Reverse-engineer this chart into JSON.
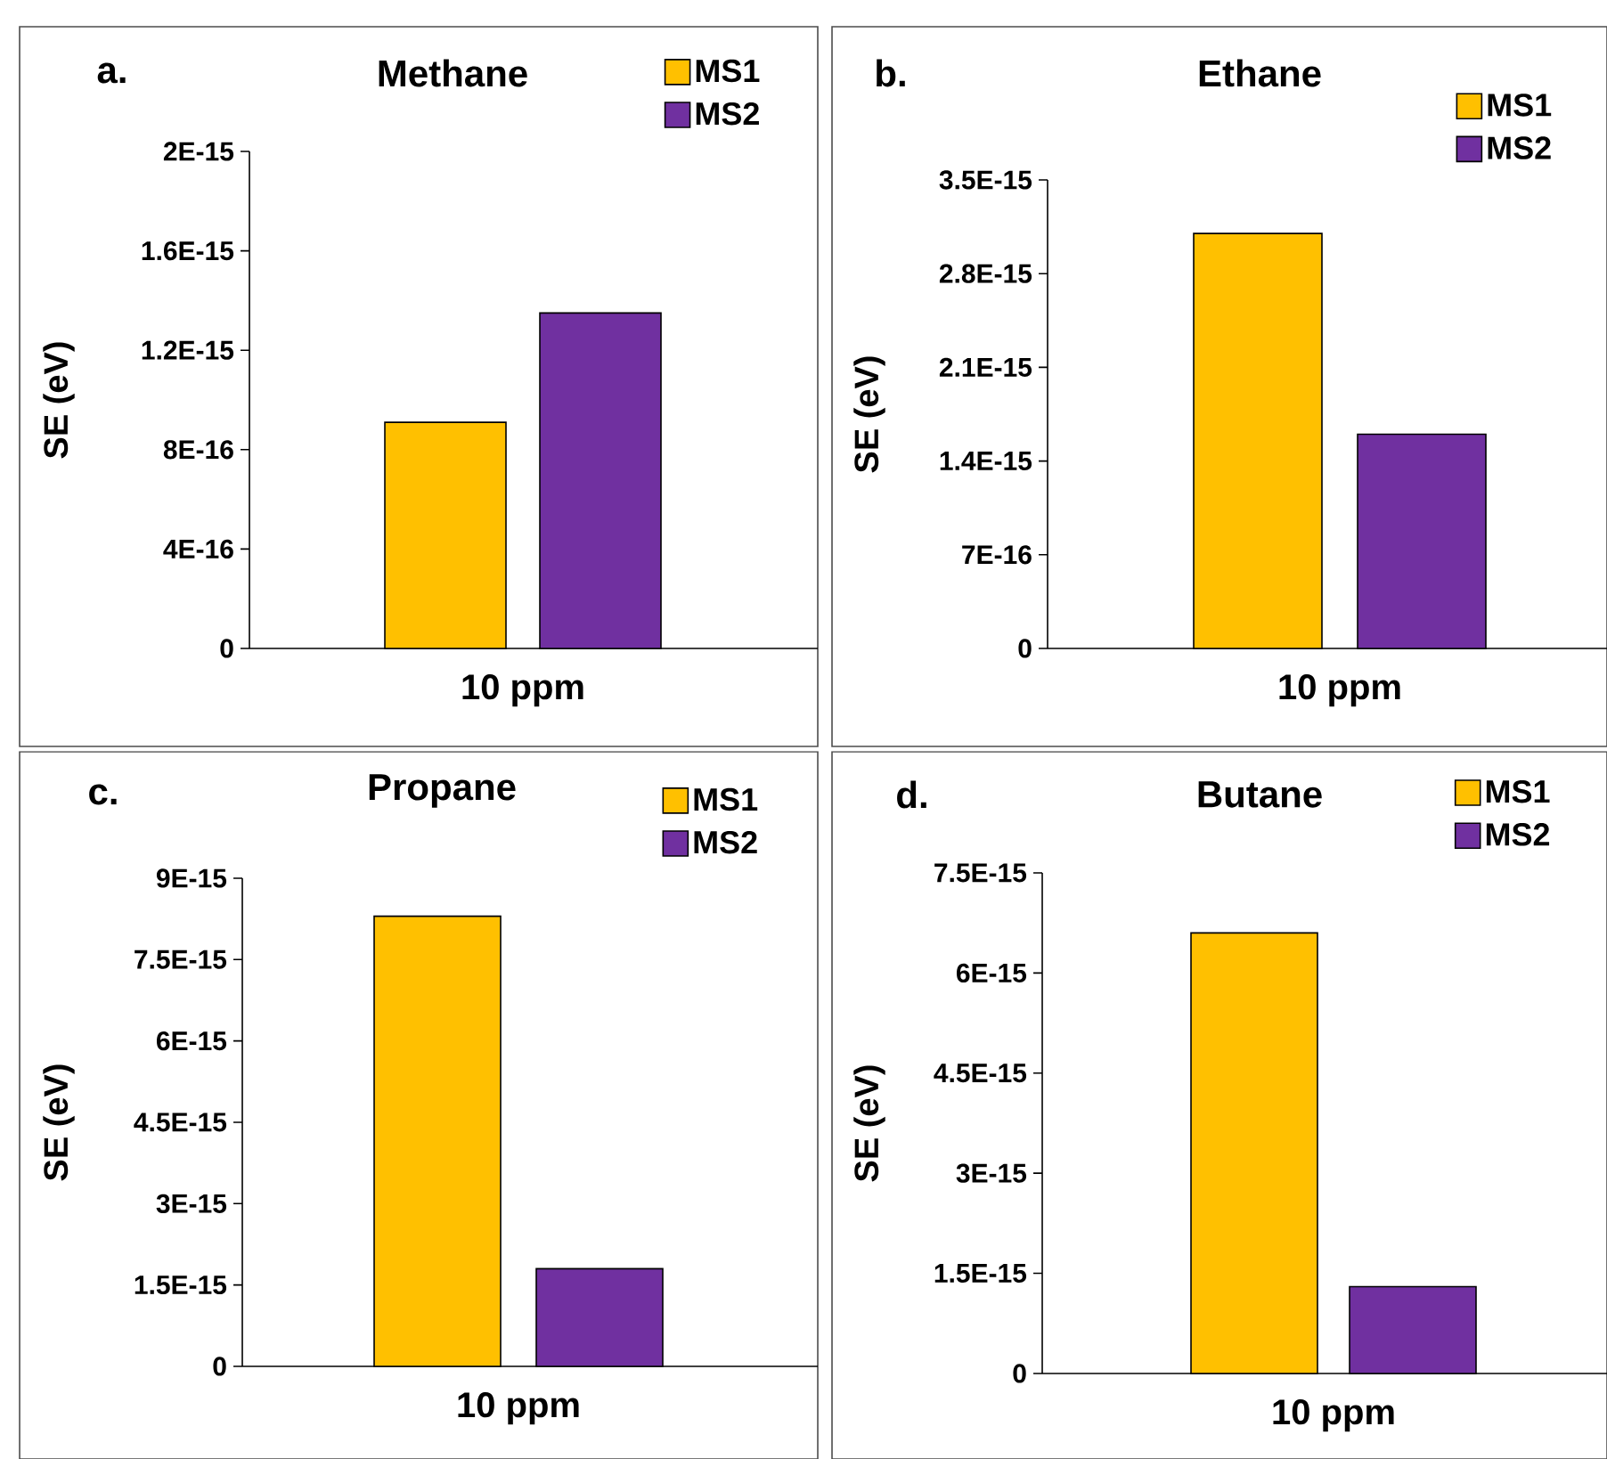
{
  "chart_data": [
    {
      "type": "bar",
      "title": "Methane",
      "annotations": [
        "a."
      ],
      "ylabel": "SE (eV)",
      "categories": [
        "10 ppm"
      ],
      "legend": "top right",
      "series": [
        {
          "name": "MS1",
          "color": "#ffc000",
          "values": [
            9.1e-16
          ]
        },
        {
          "name": "MS2",
          "color": "#7030a0",
          "values": [
            1.35e-15
          ]
        }
      ],
      "ylim": [
        0,
        2e-15
      ],
      "yticks": [
        0,
        {
          "value": 4e-16,
          "label": "4E-16"
        },
        {
          "value": 8e-16,
          "label": "8E-16"
        },
        {
          "value": 1.2e-15,
          "label": "1.2E-15"
        },
        {
          "value": 1.6e-15,
          "label": "1.6E-15"
        },
        {
          "value": 2e-15,
          "label": "2E-15"
        }
      ]
    },
    {
      "type": "bar",
      "title": "Ethane",
      "annotations": [
        "b."
      ],
      "ylabel": "SE (eV)",
      "categories": [
        "10 ppm"
      ],
      "legend": "top right",
      "series": [
        {
          "name": "MS1",
          "color": "#ffc000",
          "values": [
            3.1e-15
          ]
        },
        {
          "name": "MS2",
          "color": "#7030a0",
          "values": [
            1.6e-15
          ]
        }
      ],
      "ylim": [
        0,
        3.5e-15
      ],
      "yticks": [
        0,
        {
          "value": 7e-16,
          "label": "7E-16"
        },
        {
          "value": 1.4e-15,
          "label": "1.4E-15"
        },
        {
          "value": 2.1e-15,
          "label": "2.1E-15"
        },
        {
          "value": 2.8e-15,
          "label": "2.8E-15"
        },
        {
          "value": 3.5e-15,
          "label": "3.5E-15"
        }
      ]
    },
    {
      "type": "bar",
      "title": "Propane",
      "annotations": [
        "c."
      ],
      "ylabel": "SE (eV)",
      "categories": [
        "10 ppm"
      ],
      "legend": "top right",
      "series": [
        {
          "name": "MS1",
          "color": "#ffc000",
          "values": [
            8.3e-15
          ]
        },
        {
          "name": "MS2",
          "color": "#7030a0",
          "values": [
            1.8e-15
          ]
        }
      ],
      "ylim": [
        0,
        9e-15
      ],
      "yticks": [
        0,
        {
          "value": 1.5e-15,
          "label": "1.5E-15"
        },
        {
          "value": 3e-15,
          "label": "3E-15"
        },
        {
          "value": 4.5e-15,
          "label": "4.5E-15"
        },
        {
          "value": 6e-15,
          "label": "6E-15"
        },
        {
          "value": 7.5e-15,
          "label": "7.5E-15"
        },
        {
          "value": 9e-15,
          "label": "9E-15"
        }
      ]
    },
    {
      "type": "bar",
      "title": "Butane",
      "annotations": [
        "d."
      ],
      "ylabel": "SE (eV)",
      "categories": [
        "10 ppm"
      ],
      "legend": "top right",
      "series": [
        {
          "name": "MS1",
          "color": "#ffc000",
          "values": [
            6.6e-15
          ]
        },
        {
          "name": "MS2",
          "color": "#7030a0",
          "values": [
            1.3e-15
          ]
        }
      ],
      "ylim": [
        0,
        7.5e-15
      ],
      "yticks": [
        0,
        {
          "value": 1.5e-15,
          "label": "1.5E-15"
        },
        {
          "value": 3e-15,
          "label": "3E-15"
        },
        {
          "value": 4.5e-15,
          "label": "4.5E-15"
        },
        {
          "value": 6e-15,
          "label": "6E-15"
        },
        {
          "value": 7.5e-15,
          "label": "7.5E-15"
        }
      ]
    }
  ]
}
